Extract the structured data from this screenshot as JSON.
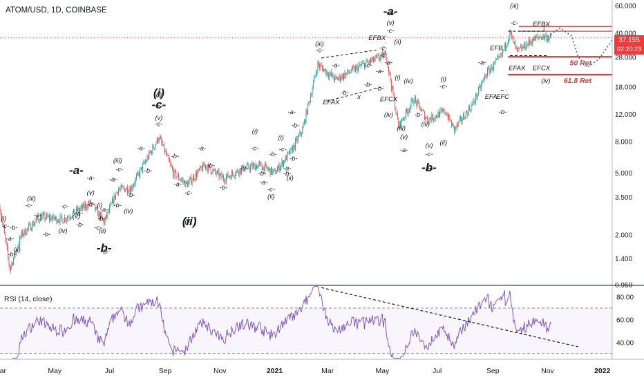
{
  "header": {
    "title": "ATOM/USD, 1D, COINBASE"
  },
  "last_price": {
    "value": "37.155",
    "countdown": "02:20:23"
  },
  "rsi_panel": {
    "label": "RSI (14, close)"
  },
  "colors": {
    "up": "#26a69a",
    "down": "#ef5350",
    "rsi": "#7e57c2",
    "level_lines": "#e53935",
    "labels": "#131722",
    "projection": "#4a78c8",
    "trendline": "#131722"
  },
  "chart_data": [
    {
      "type": "candlestick",
      "title": "ATOM/USD, 1D, COINBASE",
      "scale": "log",
      "ylim": [
        0.95,
        60
      ],
      "y_ticks": [
        "60.000",
        "40.000",
        "28.000",
        "18.000",
        "12.000",
        "8.000",
        "5.000",
        "3.500",
        "2.000",
        "1.400",
        "0.950"
      ],
      "x_ticks": [
        "Mar",
        "May",
        "Jul",
        "Sep",
        "Nov",
        "2021",
        "Mar",
        "May",
        "Jul",
        "Sep",
        "Nov",
        "2022"
      ],
      "price_path": [
        [
          "2020-03-01",
          3.0
        ],
        [
          "2020-03-12",
          1.2
        ],
        [
          "2020-03-25",
          2.0
        ],
        [
          "2020-04-15",
          2.6
        ],
        [
          "2020-05-10",
          2.5
        ],
        [
          "2020-06-10",
          3.2
        ],
        [
          "2020-06-25",
          2.4
        ],
        [
          "2020-07-10",
          3.9
        ],
        [
          "2020-07-25",
          4.0
        ],
        [
          "2020-08-25",
          8.5
        ],
        [
          "2020-09-10",
          5.0
        ],
        [
          "2020-09-25",
          4.2
        ],
        [
          "2020-10-15",
          5.6
        ],
        [
          "2020-11-05",
          4.6
        ],
        [
          "2020-11-25",
          5.3
        ],
        [
          "2020-12-15",
          5.6
        ],
        [
          "2021-01-01",
          5.0
        ],
        [
          "2021-01-20",
          7.0
        ],
        [
          "2021-02-01",
          9.5
        ],
        [
          "2021-02-18",
          25.0
        ],
        [
          "2021-03-10",
          20.0
        ],
        [
          "2021-04-10",
          25.0
        ],
        [
          "2021-05-05",
          29.0
        ],
        [
          "2021-05-19",
          10.0
        ],
        [
          "2021-06-05",
          15.0
        ],
        [
          "2021-06-20",
          11.0
        ],
        [
          "2021-07-10",
          12.5
        ],
        [
          "2021-07-20",
          9.5
        ],
        [
          "2021-08-10",
          14.0
        ],
        [
          "2021-08-25",
          22.0
        ],
        [
          "2021-09-10",
          28.0
        ],
        [
          "2021-09-20",
          40.0
        ],
        [
          "2021-09-28",
          30.0
        ],
        [
          "2021-10-15",
          36.0
        ],
        [
          "2021-10-25",
          38.0
        ],
        [
          "2021-11-05",
          37.155
        ]
      ],
      "annotations": [
        {
          "text": "(i)",
          "x": "2020-03-05",
          "y": 2.45
        },
        {
          "text": "-c-",
          "x": "2020-03-07",
          "y": 2.2
        },
        {
          "text": "-b-",
          "x": "2020-03-16",
          "y": 2.15
        },
        {
          "text": "-a-",
          "x": "2020-03-12",
          "y": 1.82
        },
        {
          "text": "(ii)",
          "x": "2020-03-20",
          "y": 1.55
        },
        {
          "text": "-b-",
          "x": "2020-03-14",
          "y": 1.45
        },
        {
          "text": "(iii)",
          "x": "2020-04-05",
          "y": 3.3
        },
        {
          "text": "-c-",
          "x": "2020-04-02",
          "y": 3.0
        },
        {
          "text": "-a-",
          "x": "2020-04-12",
          "y": 2.6
        },
        {
          "text": "-b-",
          "x": "2020-04-22",
          "y": 1.95
        },
        {
          "text": "(iv)",
          "x": "2020-05-10",
          "y": 2.05
        },
        {
          "text": "(v)",
          "x": "2020-05-25",
          "y": 2.55
        },
        {
          "text": "-c-",
          "x": "2020-05-12",
          "y": 2.95
        },
        {
          "text": "-b-",
          "x": "2020-05-29",
          "y": 2.25
        },
        {
          "text": "-a-",
          "x": "2020-05-28",
          "y": 2.65
        },
        {
          "text": "-a-",
          "x": "2020-06-10",
          "y": 4.5
        },
        {
          "text": "(v)",
          "x": "2020-06-10",
          "y": 3.6
        },
        {
          "text": "-c-",
          "x": "2020-06-10",
          "y": 3.05
        },
        {
          "text": "-b-",
          "x": "2020-06-22",
          "y": 2.45
        },
        {
          "text": "(i)",
          "x": "2020-06-20",
          "y": 3.0
        },
        {
          "text": "-c-",
          "x": "2020-06-18",
          "y": 2.15
        },
        {
          "text": "(ii)",
          "x": "2020-06-23",
          "y": 2.05
        },
        {
          "text": "-b-",
          "x": "2020-06-26",
          "y": 1.5
        },
        {
          "text": "-a-",
          "x": "2020-06-25",
          "y": 2.8
        },
        {
          "text": "(iii)",
          "x": "2020-07-10",
          "y": 5.8
        },
        {
          "text": "-c-",
          "x": "2020-07-12",
          "y": 5.1
        },
        {
          "text": "-a-",
          "x": "2020-07-05",
          "y": 4.4
        },
        {
          "text": "-b-",
          "x": "2020-07-10",
          "y": 3.0
        },
        {
          "text": "(iv)",
          "x": "2020-07-22",
          "y": 2.75
        },
        {
          "text": "-b-",
          "x": "2020-07-25",
          "y": 3.5
        },
        {
          "text": "-a-",
          "x": "2020-08-05",
          "y": 7.0
        },
        {
          "text": "-b-",
          "x": "2020-08-13",
          "y": 5.0
        },
        {
          "text": "(i)",
          "x": "2020-08-25",
          "y": 15.5
        },
        {
          "text": "-c-",
          "x": "2020-08-25",
          "y": 13.0
        },
        {
          "text": "(v)",
          "x": "2020-08-25",
          "y": 11.0
        },
        {
          "text": "-c-",
          "x": "2020-08-25",
          "y": 10.0
        },
        {
          "text": "-b-",
          "x": "2020-09-12",
          "y": 6.2
        },
        {
          "text": "-a-",
          "x": "2020-09-15",
          "y": 4.1
        },
        {
          "text": "-c-",
          "x": "2020-09-27",
          "y": 3.6
        },
        {
          "text": "(ii)",
          "x": "2020-09-27",
          "y": 2.35
        },
        {
          "text": "-a-",
          "x": "2020-10-12",
          "y": 7.0
        },
        {
          "text": "-b-",
          "x": "2020-10-22",
          "y": 5.4
        },
        {
          "text": "-b-",
          "x": "2020-11-05",
          "y": 3.9
        },
        {
          "text": "-a-",
          "x": "2020-11-28",
          "y": 5.2
        },
        {
          "text": "(i)",
          "x": "2020-12-10",
          "y": 9.0
        },
        {
          "text": "-c-",
          "x": "2020-12-10",
          "y": 7.0
        },
        {
          "text": "-b-",
          "x": "2020-12-18",
          "y": 4.8
        },
        {
          "text": "-a-",
          "x": "2020-12-20",
          "y": 4.2
        },
        {
          "text": "-c-",
          "x": "2020-12-28",
          "y": 3.8
        },
        {
          "text": "(ii)",
          "x": "2020-12-28",
          "y": 3.4
        },
        {
          "text": "-b-",
          "x": "2020-12-30",
          "y": 6.4
        },
        {
          "text": "(i)",
          "x": "2021-01-08",
          "y": 8.2
        },
        {
          "text": "-c-",
          "x": "2021-01-10",
          "y": 6.9
        },
        {
          "text": "(ii)",
          "x": "2021-01-18",
          "y": 4.5
        },
        {
          "text": "-b-",
          "x": "2021-01-22",
          "y": 6.0
        },
        {
          "text": "-a-",
          "x": "2021-01-15",
          "y": 5.2
        },
        {
          "text": "-b-",
          "x": "2021-01-15",
          "y": 4.8
        },
        {
          "text": "-a-",
          "x": "2021-01-20",
          "y": 12.0
        },
        {
          "text": "-b-",
          "x": "2021-01-24",
          "y": 9.8
        },
        {
          "text": "(iii)",
          "x": "2021-02-20",
          "y": 33.0
        },
        {
          "text": "-c-",
          "x": "2021-02-20",
          "y": 30.0
        },
        {
          "text": "EFAX",
          "x": "2021-03-05",
          "y": 13.8
        },
        {
          "text": "-a-",
          "x": "2021-03-10",
          "y": 24.0
        },
        {
          "text": "-b-",
          "x": "2021-03-20",
          "y": 16.0
        },
        {
          "text": "x",
          "x": "2021-04-05",
          "y": 15.0
        },
        {
          "text": "-c-",
          "x": "2021-04-15",
          "y": 24.0
        },
        {
          "text": "-a-",
          "x": "2021-04-28",
          "y": 22.0
        },
        {
          "text": "-b-",
          "x": "2021-04-15",
          "y": 18.0
        },
        {
          "text": "EFBX",
          "x": "2021-04-25",
          "y": 36.0
        },
        {
          "text": "-c-",
          "x": "2021-05-02",
          "y": 31.0
        },
        {
          "text": "-a-",
          "x": "2021-05-08",
          "y": 25.0
        },
        {
          "text": "-b-",
          "x": "2021-04-28",
          "y": 17.0
        },
        {
          "text": "-c-",
          "x": "2021-05-02",
          "y": 28.0
        },
        {
          "text": "EFCX",
          "x": "2021-05-08",
          "y": 14.5
        },
        {
          "text": "(iv)",
          "x": "2021-05-08",
          "y": 11.5
        },
        {
          "text": "-a-",
          "x": "2021-05-10",
          "y": 52.0
        },
        {
          "text": "(v)",
          "x": "2021-05-10",
          "y": 45.0
        },
        {
          "text": "-c-",
          "x": "2021-05-10",
          "y": 40.0
        },
        {
          "text": "(ii)",
          "x": "2021-05-18",
          "y": 34.0
        },
        {
          "text": "(i)",
          "x": "2021-05-18",
          "y": 20.0
        },
        {
          "text": "(iii)",
          "x": "2021-05-22",
          "y": 9.4
        },
        {
          "text": "(v)",
          "x": "2021-05-25",
          "y": 8.3
        },
        {
          "text": "-a-",
          "x": "2021-05-25",
          "y": 6.8
        },
        {
          "text": "(iv)",
          "x": "2021-05-30",
          "y": 19.0
        },
        {
          "text": "-b-",
          "x": "2021-06-10",
          "y": 11.5
        },
        {
          "text": "(iii)",
          "x": "2021-06-18",
          "y": 10.0
        },
        {
          "text": "(v)",
          "x": "2021-06-22",
          "y": 7.3
        },
        {
          "text": "-c-",
          "x": "2021-06-22",
          "y": 6.4
        },
        {
          "text": "-b-",
          "x": "2021-06-22",
          "y": 5.1
        },
        {
          "text": "(i)",
          "x": "2021-07-08",
          "y": 19.5
        },
        {
          "text": "-c-",
          "x": "2021-07-08",
          "y": 17.5
        },
        {
          "text": "(ii)",
          "x": "2021-07-08",
          "y": 7.6
        },
        {
          "text": "-a-",
          "x": "2021-08-20",
          "y": 25.0
        },
        {
          "text": "EFA",
          "x": "2021-08-30",
          "y": 15.0
        },
        {
          "text": "EFB",
          "x": "2021-09-05",
          "y": 31.0
        },
        {
          "text": "EFC",
          "x": "2021-09-12",
          "y": 15.0
        },
        {
          "text": "-b-",
          "x": "2021-09-12",
          "y": 12.0
        },
        {
          "text": "(iii)",
          "x": "2021-09-25",
          "y": 58.0
        },
        {
          "text": "-c-",
          "x": "2021-09-25",
          "y": 45.0
        },
        {
          "text": "EFAX",
          "x": "2021-09-28",
          "y": 23.0
        },
        {
          "text": "EFBX",
          "x": "2021-10-25",
          "y": 44.0
        },
        {
          "text": "EFCX",
          "x": "2021-10-25",
          "y": 23.0
        },
        {
          "text": "(iv)",
          "x": "2021-10-30",
          "y": 19.0
        }
      ],
      "big_labels": [
        {
          "text": "(i)",
          "x": "2020-08-25",
          "y": 15.5
        },
        {
          "text": "-c-",
          "x": "2020-08-25",
          "y": 13.0
        },
        {
          "text": "-a-",
          "x": "2020-05-25",
          "y": 4.9
        },
        {
          "text": "(ii)",
          "x": "2020-09-28",
          "y": 2.3
        },
        {
          "text": "-b-",
          "x": "2020-06-25",
          "y": 1.55
        },
        {
          "text": "-a-",
          "x": "2021-05-10",
          "y": 52.0
        },
        {
          "text": "-b-",
          "x": "2021-06-22",
          "y": 5.1
        }
      ],
      "levels": [
        {
          "label": "50 Ret",
          "value": 28.0
        },
        {
          "label": "61.8 Ret",
          "value": 21.5
        }
      ],
      "last_value": 37.155
    },
    {
      "type": "line",
      "title": "RSI (14, close)",
      "ylim": [
        25,
        90
      ],
      "y_ticks": [
        "80.00",
        "60.00",
        "40.00"
      ],
      "bands": [
        70,
        30
      ]
    }
  ]
}
